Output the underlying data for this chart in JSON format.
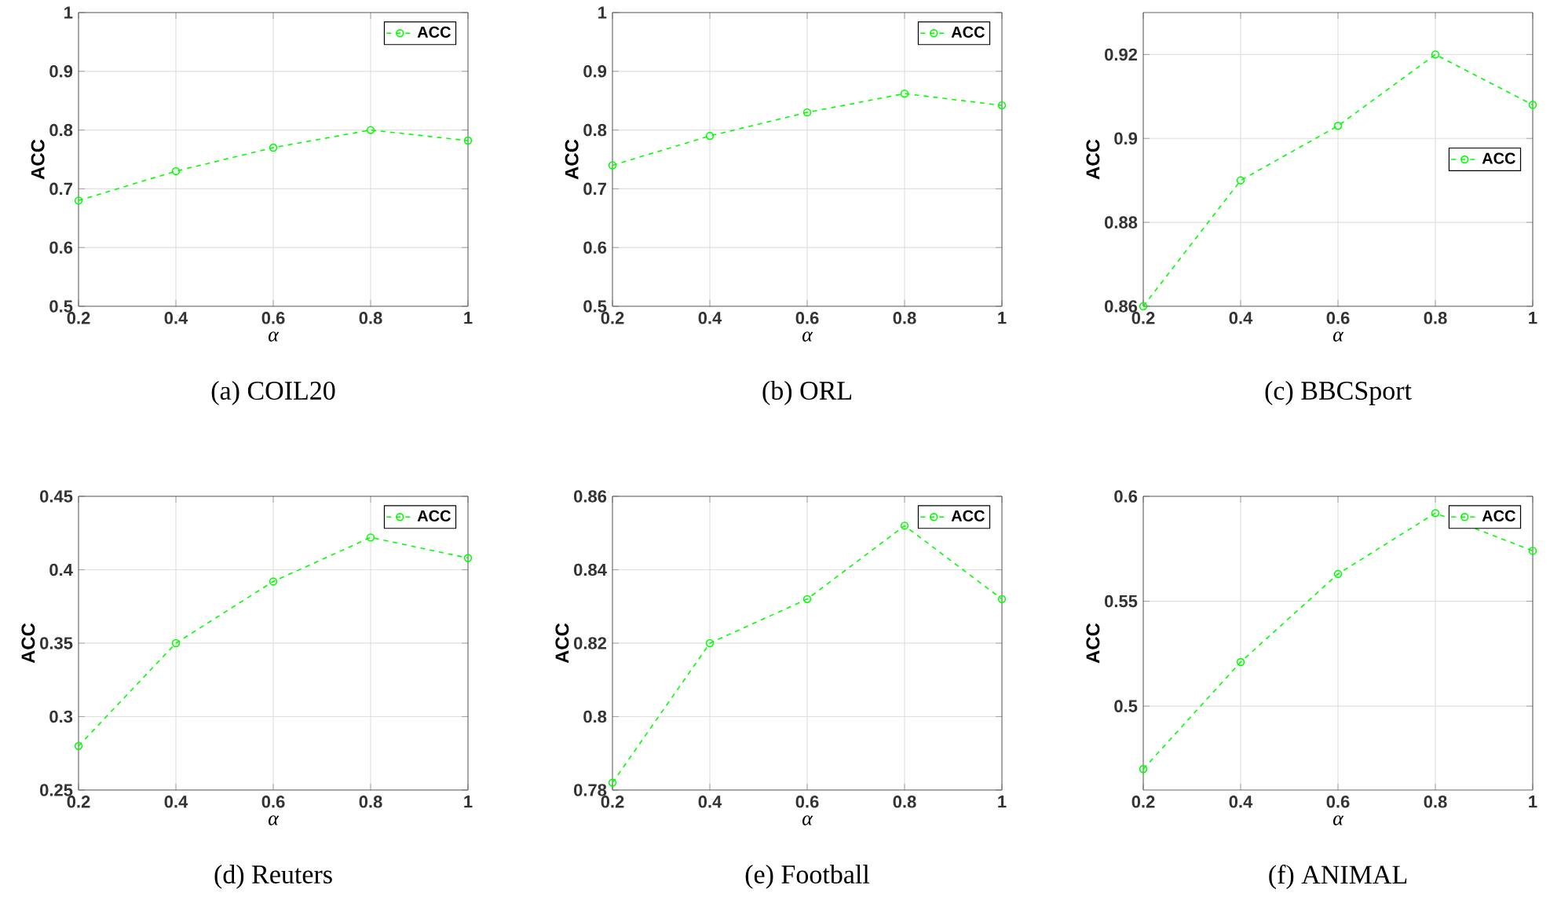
{
  "chart_data": [
    {
      "type": "line",
      "title": "(a) COIL20",
      "xlabel": "α",
      "ylabel": "ACC",
      "x": [
        0.2,
        0.4,
        0.6,
        0.8,
        1
      ],
      "xlim": [
        0.2,
        1
      ],
      "xticks": [
        0.2,
        0.4,
        0.6,
        0.8,
        1
      ],
      "ylim": [
        0.5,
        1
      ],
      "yticks": [
        0.5,
        0.6,
        0.7,
        0.8,
        0.9,
        1
      ],
      "grid": true,
      "legend": "top right",
      "marker": "circle",
      "line_style": "dashed",
      "series": [
        {
          "name": "ACC",
          "color": "#00ff00",
          "values": [
            0.68,
            0.73,
            0.77,
            0.8,
            0.782
          ]
        }
      ]
    },
    {
      "type": "line",
      "title": "(b) ORL",
      "xlabel": "α",
      "ylabel": "ACC",
      "x": [
        0.2,
        0.4,
        0.6,
        0.8,
        1
      ],
      "xlim": [
        0.2,
        1
      ],
      "xticks": [
        0.2,
        0.4,
        0.6,
        0.8,
        1
      ],
      "ylim": [
        0.5,
        1
      ],
      "yticks": [
        0.5,
        0.6,
        0.7,
        0.8,
        0.9,
        1
      ],
      "grid": true,
      "legend": "top right",
      "marker": "circle",
      "line_style": "dashed",
      "series": [
        {
          "name": "ACC",
          "color": "#00ff00",
          "values": [
            0.74,
            0.79,
            0.83,
            0.862,
            0.842
          ]
        }
      ]
    },
    {
      "type": "line",
      "title": "(c) BBCSport",
      "xlabel": "α",
      "ylabel": "ACC",
      "x": [
        0.2,
        0.4,
        0.6,
        0.8,
        1
      ],
      "xlim": [
        0.2,
        1
      ],
      "xticks": [
        0.2,
        0.4,
        0.6,
        0.8,
        1
      ],
      "ylim": [
        0.86,
        0.93
      ],
      "yticks": [
        0.86,
        0.88,
        0.9,
        0.92
      ],
      "grid": true,
      "legend": "right",
      "marker": "circle",
      "line_style": "dashed",
      "series": [
        {
          "name": "ACC",
          "color": "#00ff00",
          "values": [
            0.86,
            0.89,
            0.903,
            0.92,
            0.908
          ]
        }
      ]
    },
    {
      "type": "line",
      "title": "(d) Reuters",
      "xlabel": "α",
      "ylabel": "ACC",
      "x": [
        0.2,
        0.4,
        0.6,
        0.8,
        1
      ],
      "xlim": [
        0.2,
        1
      ],
      "xticks": [
        0.2,
        0.4,
        0.6,
        0.8,
        1
      ],
      "ylim": [
        0.25,
        0.45
      ],
      "yticks": [
        0.25,
        0.3,
        0.35,
        0.4,
        0.45
      ],
      "grid": true,
      "legend": "top right",
      "marker": "circle",
      "line_style": "dashed",
      "series": [
        {
          "name": "ACC",
          "color": "#00ff00",
          "values": [
            0.28,
            0.35,
            0.392,
            0.422,
            0.408
          ]
        }
      ]
    },
    {
      "type": "line",
      "title": "(e) Football",
      "xlabel": "α",
      "ylabel": "ACC",
      "x": [
        0.2,
        0.4,
        0.6,
        0.8,
        1
      ],
      "xlim": [
        0.2,
        1
      ],
      "xticks": [
        0.2,
        0.4,
        0.6,
        0.8,
        1
      ],
      "ylim": [
        0.78,
        0.86
      ],
      "yticks": [
        0.78,
        0.8,
        0.82,
        0.84,
        0.86
      ],
      "grid": true,
      "legend": "top right",
      "marker": "circle",
      "line_style": "dashed",
      "series": [
        {
          "name": "ACC",
          "color": "#00ff00",
          "values": [
            0.782,
            0.82,
            0.832,
            0.852,
            0.832
          ]
        }
      ]
    },
    {
      "type": "line",
      "title": "(f) ANIMAL",
      "xlabel": "α",
      "ylabel": "ACC",
      "x": [
        0.2,
        0.4,
        0.6,
        0.8,
        1
      ],
      "xlim": [
        0.2,
        1
      ],
      "xticks": [
        0.2,
        0.4,
        0.6,
        0.8,
        1
      ],
      "ylim": [
        0.46,
        0.6
      ],
      "yticks": [
        0.5,
        0.55,
        0.6
      ],
      "grid": true,
      "legend": "top right",
      "marker": "circle",
      "line_style": "dashed",
      "series": [
        {
          "name": "ACC",
          "color": "#00ff00",
          "values": [
            0.47,
            0.521,
            0.563,
            0.592,
            0.574
          ]
        }
      ]
    }
  ]
}
